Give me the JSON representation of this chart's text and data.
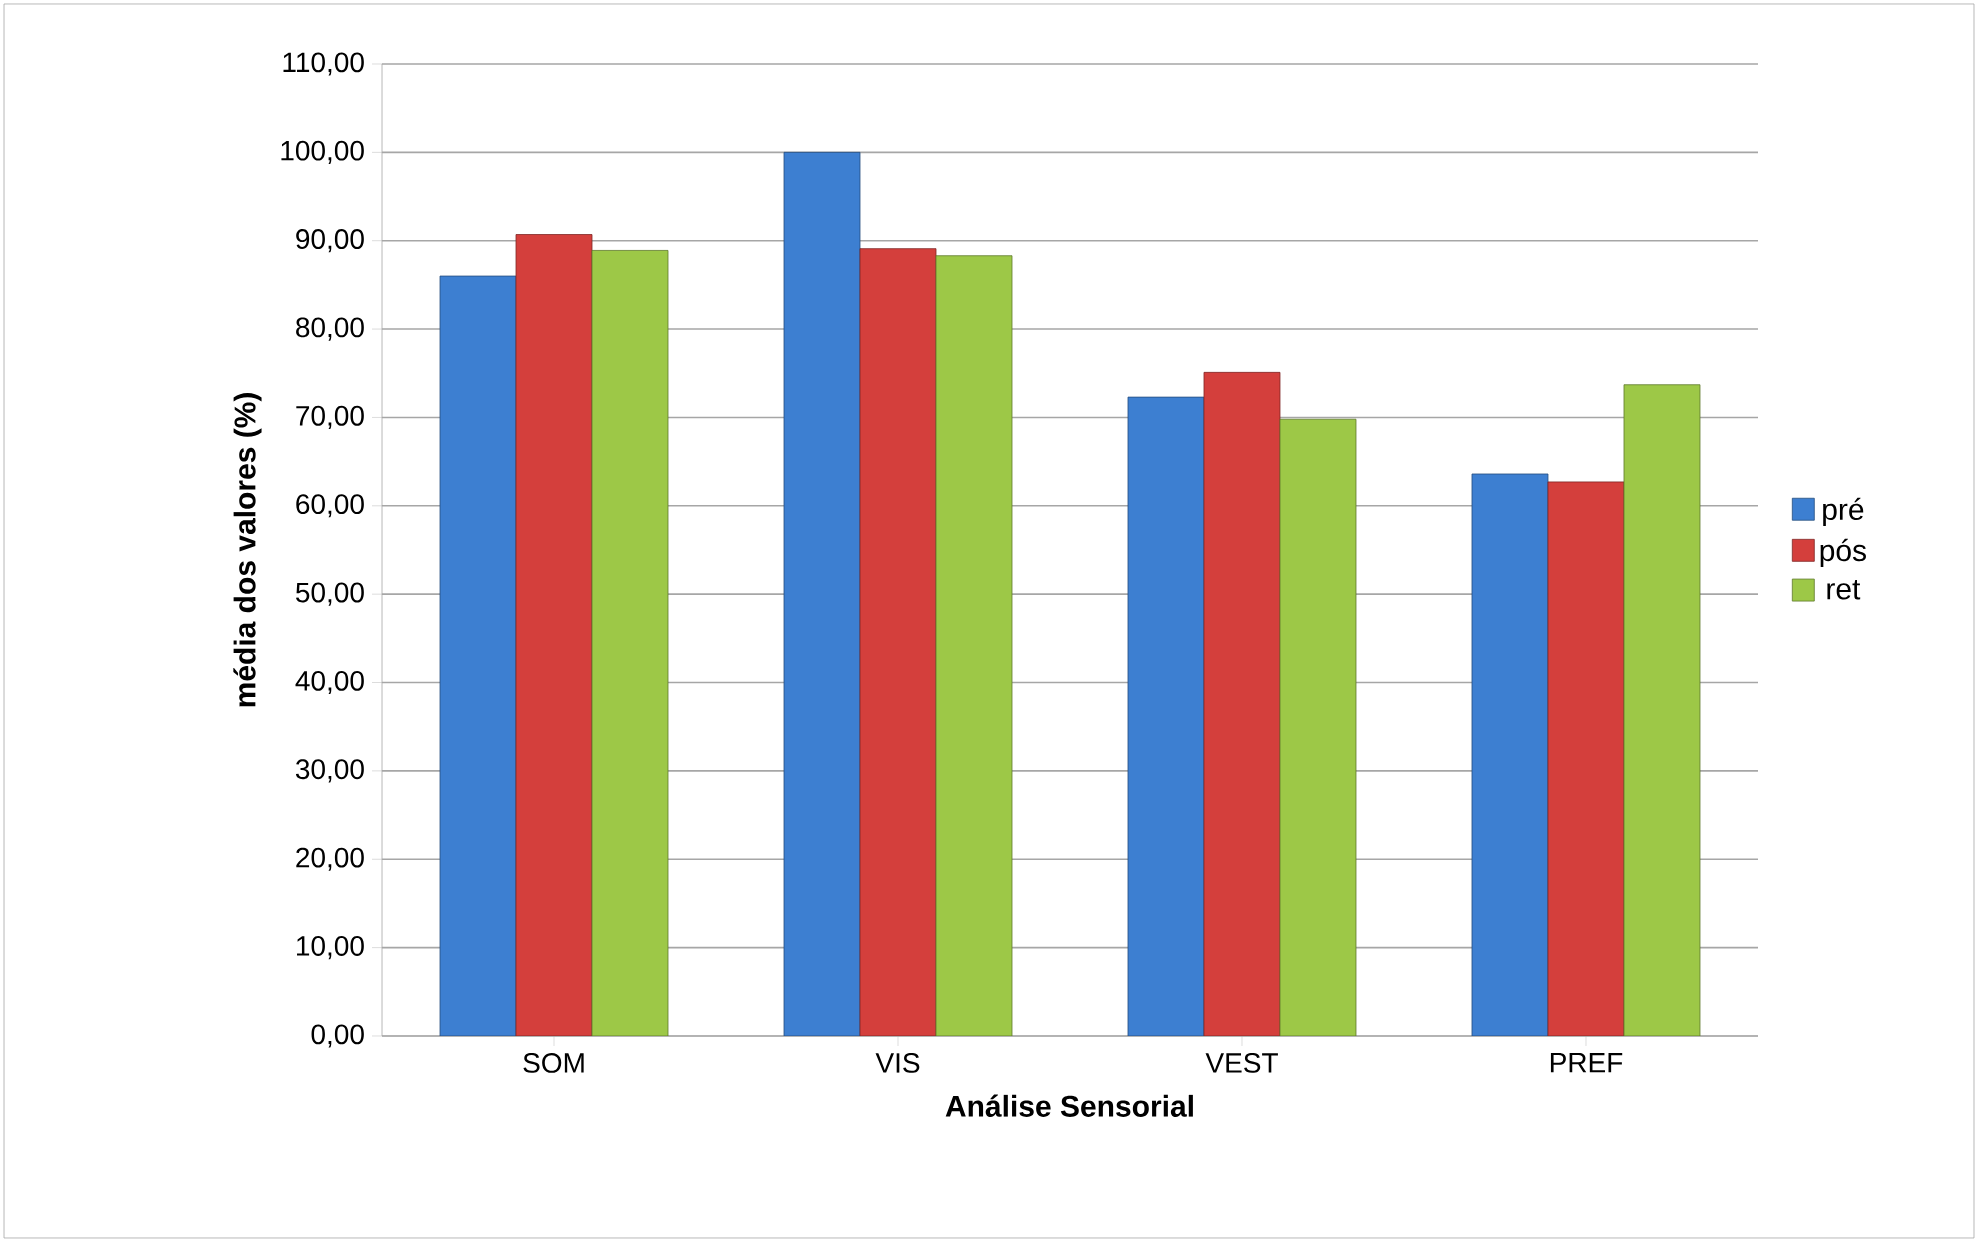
{
  "chart_data": {
    "type": "bar",
    "xlabel": "Análise Sensorial",
    "ylabel": "média dos valores (%)",
    "categories": [
      "SOM",
      "VIS",
      "VEST",
      "PREF"
    ],
    "series": [
      {
        "name": "pré",
        "color": "#3d7fd1",
        "values": [
          86.0,
          100.0,
          72.3,
          63.6
        ]
      },
      {
        "name": "pós",
        "color": "#d43f3c",
        "values": [
          90.7,
          89.1,
          75.1,
          62.7
        ]
      },
      {
        "name": "ret",
        "color": "#9dc847",
        "values": [
          88.9,
          88.3,
          69.8,
          73.7
        ]
      }
    ],
    "ylim": [
      0,
      110
    ],
    "yticks": [
      {
        "value": 0,
        "label": "0,00"
      },
      {
        "value": 10,
        "label": "10,00"
      },
      {
        "value": 20,
        "label": "20,00"
      },
      {
        "value": 30,
        "label": "30,00"
      },
      {
        "value": 40,
        "label": "40,00"
      },
      {
        "value": 50,
        "label": "50,00"
      },
      {
        "value": 60,
        "label": "60,00"
      },
      {
        "value": 70,
        "label": "70,00"
      },
      {
        "value": 80,
        "label": "80,00"
      },
      {
        "value": 90,
        "label": "90,00"
      },
      {
        "value": 100,
        "label": "100,00"
      },
      {
        "value": 110,
        "label": "110,00"
      }
    ],
    "grid": "y",
    "legend": "right"
  }
}
